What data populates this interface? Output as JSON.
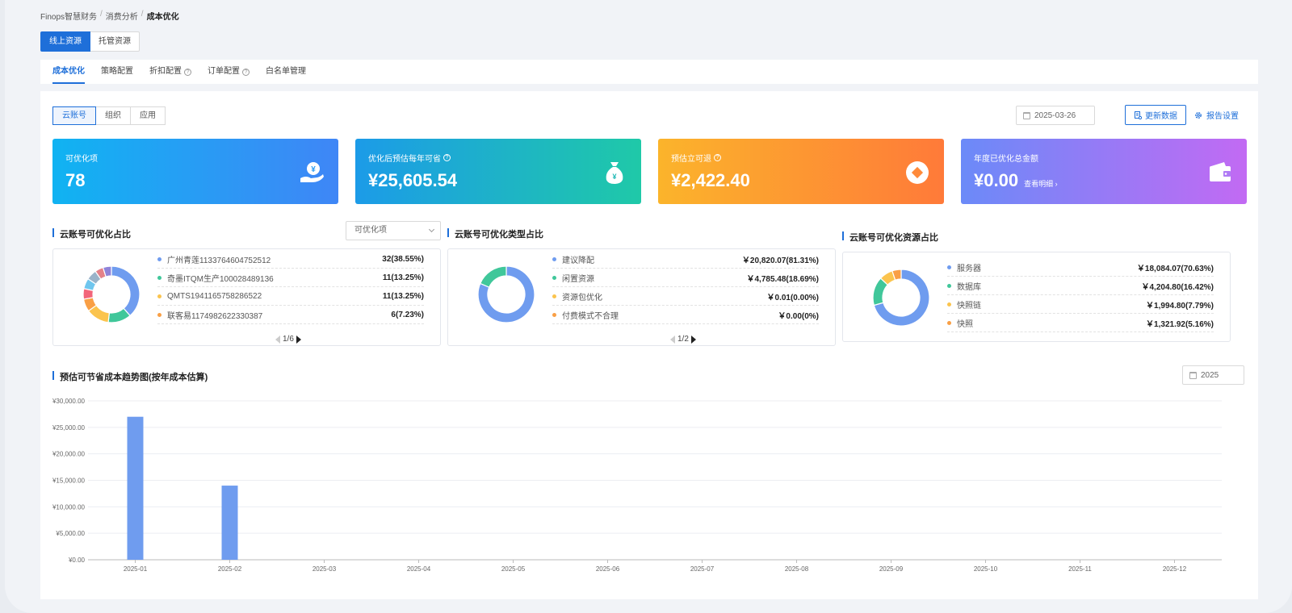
{
  "breadcrumb": [
    "Finops智慧财务",
    "消费分析",
    "成本优化"
  ],
  "resource_tabs": [
    "线上资源",
    "托管资源"
  ],
  "nav_tabs": [
    {
      "label": "成本优化",
      "help": false
    },
    {
      "label": "策略配置",
      "help": false
    },
    {
      "label": "折扣配置",
      "help": true
    },
    {
      "label": "订单配置",
      "help": true
    },
    {
      "label": "白名单管理",
      "help": false
    }
  ],
  "scope_tabs": [
    "云账号",
    "组织",
    "应用"
  ],
  "date": "2025-03-26",
  "update_button": "更新数据",
  "report_button": "报告设置",
  "cards": [
    {
      "label": "可优化项",
      "value": "78",
      "help": false,
      "icon": "yen-hand-icon"
    },
    {
      "label": "优化后预估每年可省",
      "value": "¥25,605.54",
      "help": true,
      "icon": "money-bag-icon"
    },
    {
      "label": "预估立可退",
      "value": "¥2,422.40",
      "help": true,
      "icon": "coin-icon"
    },
    {
      "label": "年度已优化总金额",
      "value": "¥0.00",
      "help": false,
      "icon": "wallet-icon",
      "link": "查看明细"
    }
  ],
  "panel1": {
    "title": "云账号可优化占比",
    "select": "可优化项",
    "pager": "1/6",
    "items": [
      {
        "name": "广州青莲1133764604752512",
        "value": "32(38.55%)",
        "color": "#6f9cef"
      },
      {
        "name": "奇墨ITQM生产100028489136",
        "value": "11(13.25%)",
        "color": "#40c79a"
      },
      {
        "name": "QMTS1941165758286522",
        "value": "11(13.25%)",
        "color": "#fbc44e"
      },
      {
        "name": "联客易1174982622330387",
        "value": "6(7.23%)",
        "color": "#f99f45"
      }
    ],
    "donut": [
      {
        "value": 38.55,
        "color": "#6f9cef"
      },
      {
        "value": 13.25,
        "color": "#40c79a"
      },
      {
        "value": 13.25,
        "color": "#fbc44e"
      },
      {
        "value": 7.23,
        "color": "#f99f45"
      },
      {
        "value": 6.02,
        "color": "#f2657a"
      },
      {
        "value": 6.02,
        "color": "#6fc6ee"
      },
      {
        "value": 6.02,
        "color": "#9ab3c9"
      },
      {
        "value": 4.82,
        "color": "#e48189"
      },
      {
        "value": 4.82,
        "color": "#8f83d9"
      }
    ]
  },
  "panel2": {
    "title": "云账号可优化类型占比",
    "pager": "1/2",
    "items": [
      {
        "name": "建议降配",
        "value": "￥20,820.07(81.31%)",
        "color": "#6f9cef"
      },
      {
        "name": "闲置资源",
        "value": "￥4,785.48(18.69%)",
        "color": "#40c79a"
      },
      {
        "name": "资源包优化",
        "value": "￥0.01(0.00%)",
        "color": "#fbc44e"
      },
      {
        "name": "付费模式不合理",
        "value": "￥0.00(0%)",
        "color": "#f99f45"
      }
    ],
    "donut": [
      {
        "value": 81.31,
        "color": "#6f9cef"
      },
      {
        "value": 18.69,
        "color": "#40c79a"
      }
    ]
  },
  "panel3": {
    "title": "云账号可优化资源占比",
    "items": [
      {
        "name": "服务器",
        "value": "￥18,084.07(70.63%)",
        "color": "#6f9cef"
      },
      {
        "name": "数据库",
        "value": "￥4,204.80(16.42%)",
        "color": "#40c79a"
      },
      {
        "name": "快照链",
        "value": "￥1,994.80(7.79%)",
        "color": "#fbc44e"
      },
      {
        "name": "快照",
        "value": "￥1,321.92(5.16%)",
        "color": "#f99f45"
      }
    ],
    "donut": [
      {
        "value": 70.63,
        "color": "#6f9cef"
      },
      {
        "value": 16.42,
        "color": "#40c79a"
      },
      {
        "value": 7.79,
        "color": "#fbc44e"
      },
      {
        "value": 5.16,
        "color": "#f99f45"
      }
    ]
  },
  "trend": {
    "title": "预估可节省成本趋势图(按年成本估算)",
    "year": "2025"
  },
  "chart_data": {
    "type": "bar",
    "title": "预估可节省成本趋势图(按年成本估算)",
    "categories": [
      "2025-01",
      "2025-02",
      "2025-03",
      "2025-04",
      "2025-05",
      "2025-06",
      "2025-07",
      "2025-08",
      "2025-09",
      "2025-10",
      "2025-11",
      "2025-12"
    ],
    "values": [
      27000,
      14000,
      0,
      0,
      0,
      0,
      0,
      0,
      0,
      0,
      0,
      0
    ],
    "yticks": [
      "¥0.00",
      "¥5,000.00",
      "¥10,000.00",
      "¥15,000.00",
      "¥20,000.00",
      "¥25,000.00",
      "¥30,000.00"
    ],
    "ylim": [
      0,
      30000
    ],
    "bar_color": "#6f9cef",
    "grid": true
  }
}
